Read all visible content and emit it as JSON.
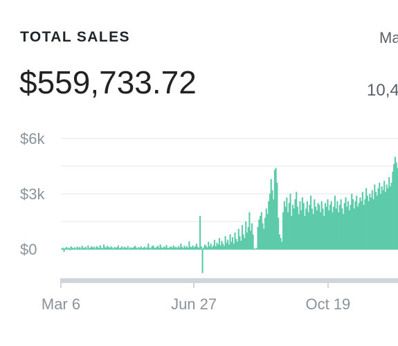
{
  "header": {
    "title": "TOTAL SALES",
    "total": "$559,733.72",
    "side_label": "Ma",
    "side_value": "10,4"
  },
  "colors": {
    "bar": "#5dcba9",
    "grid": "#e2e5e8",
    "axis": "#cfd5db",
    "tick_text": "#8a929b"
  },
  "chart_data": {
    "type": "bar",
    "title": "TOTAL SALES",
    "xlabel": "",
    "ylabel": "",
    "x_range": [
      "Mar 6",
      "Dec 24"
    ],
    "ylim": [
      -1500,
      6000
    ],
    "grid": true,
    "y_ticks": [
      {
        "value": 6000,
        "label": "$6k"
      },
      {
        "value": 3000,
        "label": "$3k"
      },
      {
        "value": 0,
        "label": "$0"
      }
    ],
    "x_ticks": [
      {
        "value": "Mar 6",
        "label": "Mar 6"
      },
      {
        "value": "Jun 27",
        "label": "Jun 27"
      },
      {
        "value": "Oct 19",
        "label": "Oct 19"
      }
    ],
    "start_date": "Mar 6",
    "series": [
      {
        "values": [
          0,
          80,
          -150,
          60,
          120,
          40,
          90,
          -60,
          150,
          70,
          50,
          100,
          20,
          140,
          60,
          110,
          30,
          180,
          90,
          60,
          120,
          20,
          200,
          50,
          90,
          150,
          70,
          130,
          40,
          160,
          100,
          60,
          210,
          80,
          40,
          250,
          120,
          70,
          180,
          110,
          60,
          150,
          90,
          30,
          120,
          70,
          100,
          200,
          50,
          80,
          150,
          40,
          130,
          90,
          60,
          170,
          30,
          100,
          80,
          60,
          120,
          180,
          90,
          40,
          110,
          70,
          150,
          60,
          90,
          130,
          50,
          100,
          300,
          80,
          40,
          150,
          200,
          90,
          60,
          120,
          180,
          70,
          250,
          100,
          60,
          140,
          90,
          220,
          80,
          60,
          110,
          150,
          70,
          200,
          90,
          130,
          50,
          160,
          80,
          300,
          120,
          60,
          180,
          90,
          150,
          70,
          420,
          130,
          100,
          200,
          90,
          150,
          300,
          120,
          80,
          1800,
          150,
          -1300,
          100,
          250,
          180,
          90,
          400,
          150,
          300,
          100,
          200,
          500,
          150,
          350,
          250,
          600,
          200,
          450,
          300,
          180,
          700,
          350,
          500,
          250,
          800,
          400,
          650,
          300,
          900,
          550,
          400,
          1100,
          700,
          450,
          1300,
          800,
          600,
          1500,
          900,
          1200,
          2000,
          1000,
          1400,
          800,
          30,
          20,
          60,
          1200,
          1600,
          1800,
          2000,
          1400,
          1100,
          1700,
          2200,
          1900,
          2600,
          3000,
          3800,
          3200,
          2700,
          4300,
          4400,
          3600,
          1700,
          800,
          600,
          400,
          2000,
          2600,
          2300,
          2800,
          2000,
          2500,
          3000,
          1800,
          2400,
          2200,
          2700,
          3100,
          2300,
          1900,
          2600,
          2100,
          2800,
          2500,
          1800,
          2200,
          2600,
          2000,
          2400,
          2900,
          2200,
          1900,
          2700,
          2300,
          2100,
          2500,
          2400,
          2000,
          2600,
          2200,
          1800,
          2500,
          2300,
          2700,
          2100,
          2400,
          2600,
          2000,
          2300,
          2900,
          2200,
          2600,
          2000,
          2400,
          2700,
          2200,
          1900,
          2500,
          2800,
          2300,
          2600,
          2100,
          2400,
          3000,
          2700,
          2200,
          2600,
          2900,
          2300,
          2500,
          2800,
          2600,
          3100,
          2400,
          2700,
          3300,
          2900,
          2600,
          3000,
          2800,
          3200,
          2700,
          3500,
          3100,
          2900,
          3300,
          3600,
          3000,
          3400,
          3200,
          3700,
          3100,
          3500,
          3300,
          3900,
          3400,
          3600,
          4200,
          4600,
          5000,
          4700,
          4400
        ]
      }
    ]
  }
}
